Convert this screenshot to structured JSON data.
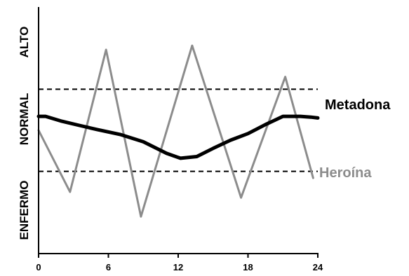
{
  "colors": {
    "metadona": "#000000",
    "heroina": "#8c8c8c",
    "axis": "#000000",
    "threshold": "#000000"
  },
  "chart_data": {
    "type": "line",
    "title": "",
    "xlabel": "",
    "ylabel": "",
    "xlim": [
      0,
      24
    ],
    "ylim": [
      0,
      3
    ],
    "x_ticks": [
      "0",
      "6",
      "12",
      "18",
      "24"
    ],
    "y_zones": [
      "ENFERMO",
      "NORMAL",
      "ALTO"
    ],
    "thresholds": [
      1.0,
      2.0
    ],
    "grid": false,
    "series": [
      {
        "name": "Metadona",
        "x": [
          0,
          0.6,
          2,
          3.5,
          5,
          7,
          9,
          11,
          12.2,
          13.6,
          15,
          16.5,
          18,
          19.5,
          21,
          22.5,
          23.4,
          24
        ],
        "y": [
          1.67,
          1.67,
          1.61,
          1.56,
          1.51,
          1.45,
          1.36,
          1.22,
          1.16,
          1.18,
          1.28,
          1.38,
          1.46,
          1.57,
          1.67,
          1.67,
          1.66,
          1.65
        ],
        "color": "#000000",
        "linewidth": "thick"
      },
      {
        "name": "Heroína",
        "x": [
          0,
          2.7,
          5.8,
          8.8,
          13.2,
          17.4,
          21.2,
          23.6
        ],
        "y": [
          1.5,
          0.75,
          2.48,
          0.45,
          2.53,
          0.68,
          2.15,
          0.92
        ],
        "color": "#8c8c8c",
        "linewidth": "normal"
      }
    ]
  }
}
